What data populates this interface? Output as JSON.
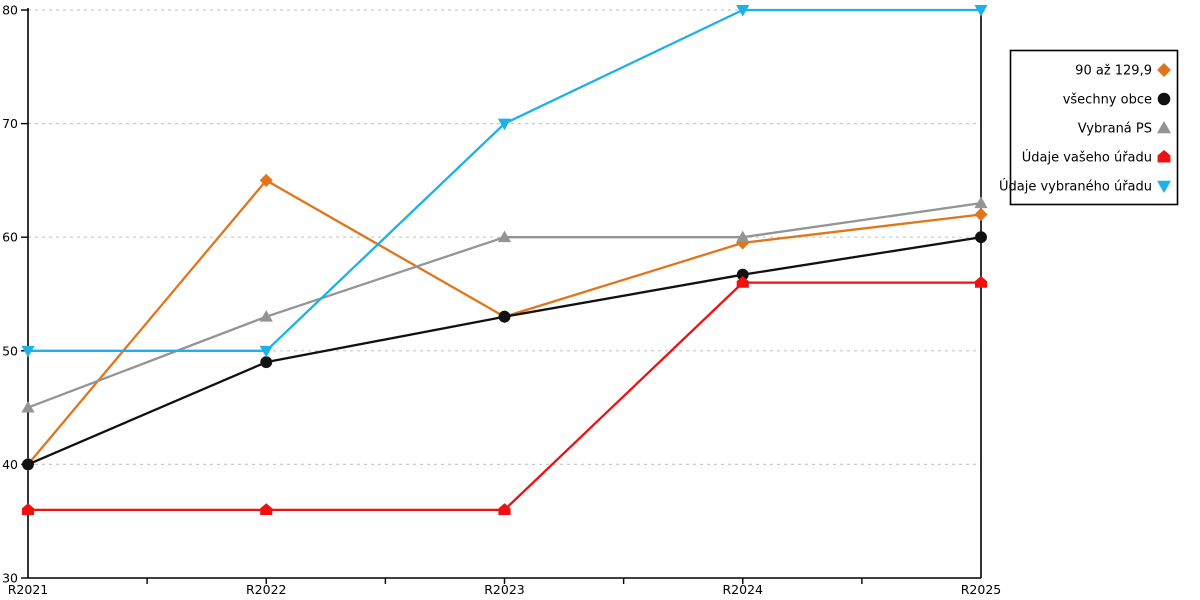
{
  "chart_data": {
    "type": "line",
    "title": "",
    "xlabel": "",
    "ylabel": "",
    "x": [
      "R2021",
      "R2022",
      "R2023",
      "R2024",
      "R2025"
    ],
    "y_ticks": [
      30,
      40,
      50,
      60,
      70,
      80
    ],
    "ylim": [
      30,
      80
    ],
    "grid": "horizontal-dashed",
    "legend_position": "right-outside",
    "series": [
      {
        "name": "90 až 129,9",
        "marker": "diamond",
        "color": "#E0751C",
        "values": [
          40,
          65,
          53,
          59.5,
          62
        ]
      },
      {
        "name": "všechny obce",
        "marker": "circle",
        "color": "#111111",
        "values": [
          40,
          49,
          53,
          56.7,
          60
        ]
      },
      {
        "name": "Vybraná PS",
        "marker": "triangle-up",
        "color": "#949494",
        "values": [
          45,
          53,
          60,
          60,
          63
        ]
      },
      {
        "name": "Údaje vašeho úřadu",
        "marker": "house",
        "color": "#EE1111",
        "values": [
          36,
          36,
          36,
          56,
          56
        ]
      },
      {
        "name": "Údaje vybraného úřadu",
        "marker": "triangle-down",
        "color": "#1EB0E8",
        "values": [
          50,
          50,
          70,
          80,
          80
        ]
      }
    ]
  },
  "colors": {
    "background": "#FFFFFF",
    "gridline": "#C9C9C9",
    "axis": "#000000",
    "legend_border": "#000000",
    "legend_background": "#FFFFFF"
  }
}
